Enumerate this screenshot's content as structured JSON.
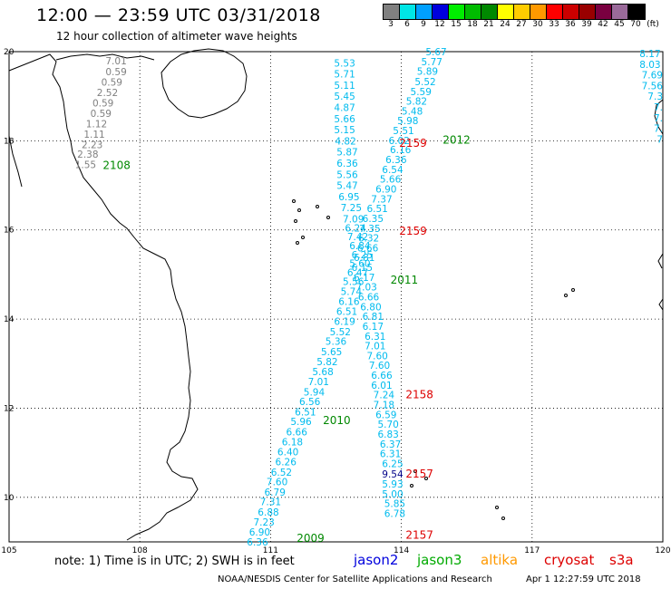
{
  "title": "12:00 — 23:59 UTC 03/31/2018",
  "subtitle": "12 hour collection of altimeter wave heights",
  "legend": {
    "unit_label": "(ft)",
    "bins": [
      {
        "label": "3",
        "color": "#808080"
      },
      {
        "label": "6",
        "color": "#00e6e6"
      },
      {
        "label": "9",
        "color": "#00a0ff"
      },
      {
        "label": "12",
        "color": "#0000dd"
      },
      {
        "label": "15",
        "color": "#00ee00"
      },
      {
        "label": "18",
        "color": "#00bb00"
      },
      {
        "label": "21",
        "color": "#008800"
      },
      {
        "label": "24",
        "color": "#ffff00"
      },
      {
        "label": "27",
        "color": "#ffcc00"
      },
      {
        "label": "30",
        "color": "#ff9900"
      },
      {
        "label": "33",
        "color": "#ff0000"
      },
      {
        "label": "36",
        "color": "#cc0000"
      },
      {
        "label": "39",
        "color": "#990000"
      },
      {
        "label": "42",
        "color": "#7a0040"
      },
      {
        "label": "45",
        "color": "#9a6a9a"
      },
      {
        "label": "70",
        "color": "#000000"
      }
    ]
  },
  "axes": {
    "x_ticks": [
      "105",
      "108",
      "111",
      "114",
      "117",
      "120"
    ],
    "y_ticks": [
      "20",
      "18",
      "16",
      "14",
      "12",
      "10"
    ]
  },
  "track_colors": {
    "swh_low": "#808080",
    "swh_6": "#00ccff",
    "swh_9": "#0099ff",
    "pass_j3": "#008800",
    "pass_cs": "#dd0000"
  },
  "tracks": [
    {
      "id": "gray-coastal",
      "color": "#808080",
      "anchor": "end",
      "points": [
        {
          "v": "7.01",
          "lon": 107.7,
          "lat": 19.8
        },
        {
          "v": "0.59",
          "lon": 107.7,
          "lat": 19.55
        },
        {
          "v": "0.59",
          "lon": 107.6,
          "lat": 19.32
        },
        {
          "v": "2.52",
          "lon": 107.5,
          "lat": 19.08
        },
        {
          "v": "0.59",
          "lon": 107.4,
          "lat": 18.85
        },
        {
          "v": "0.59",
          "lon": 107.35,
          "lat": 18.62
        },
        {
          "v": "1.12",
          "lon": 107.25,
          "lat": 18.38
        },
        {
          "v": "1.11",
          "lon": 107.2,
          "lat": 18.15
        },
        {
          "v": "2.23",
          "lon": 107.15,
          "lat": 17.92
        },
        {
          "v": "2.38",
          "lon": 107.05,
          "lat": 17.7
        },
        {
          "v": "1.55",
          "lon": 107.0,
          "lat": 17.47
        }
      ]
    },
    {
      "id": "track-desc",
      "color": "#00bbee",
      "anchor": "middle",
      "points": [
        {
          "v": "5.53",
          "lon": 112.7,
          "lat": 19.75
        },
        {
          "v": "5.71",
          "lon": 112.7,
          "lat": 19.5
        },
        {
          "v": "5.11",
          "lon": 112.7,
          "lat": 19.25
        },
        {
          "v": "5.45",
          "lon": 112.7,
          "lat": 19.0
        },
        {
          "v": "4.87",
          "lon": 112.7,
          "lat": 18.75
        },
        {
          "v": "5.66",
          "lon": 112.7,
          "lat": 18.5
        },
        {
          "v": "5.15",
          "lon": 112.7,
          "lat": 18.25
        },
        {
          "v": "4.82",
          "lon": 112.72,
          "lat": 18.0
        },
        {
          "v": "5.87",
          "lon": 112.76,
          "lat": 17.75
        },
        {
          "v": "6.36",
          "lon": 112.76,
          "lat": 17.5
        },
        {
          "v": "5.56",
          "lon": 112.76,
          "lat": 17.25
        },
        {
          "v": "5.47",
          "lon": 112.76,
          "lat": 17.0
        },
        {
          "v": "6.95",
          "lon": 112.8,
          "lat": 16.75
        },
        {
          "v": "7.25",
          "lon": 112.85,
          "lat": 16.5
        },
        {
          "v": "7.09",
          "lon": 112.9,
          "lat": 16.25
        },
        {
          "v": "6.24",
          "lon": 112.95,
          "lat": 16.05
        },
        {
          "v": "7.42",
          "lon": 113.0,
          "lat": 15.85
        },
        {
          "v": "6.84",
          "lon": 113.05,
          "lat": 15.65
        },
        {
          "v": "6.25",
          "lon": 113.1,
          "lat": 15.45
        },
        {
          "v": "5.60",
          "lon": 113.05,
          "lat": 15.25
        },
        {
          "v": "6.47",
          "lon": 113.0,
          "lat": 15.05
        },
        {
          "v": "5.56",
          "lon": 112.9,
          "lat": 14.85
        },
        {
          "v": "5.74",
          "lon": 112.85,
          "lat": 14.62
        },
        {
          "v": "6.16",
          "lon": 112.8,
          "lat": 14.4
        },
        {
          "v": "6.51",
          "lon": 112.75,
          "lat": 14.17
        },
        {
          "v": "6.19",
          "lon": 112.7,
          "lat": 13.95
        },
        {
          "v": "5.52",
          "lon": 112.6,
          "lat": 13.72
        },
        {
          "v": "5.36",
          "lon": 112.5,
          "lat": 13.5
        },
        {
          "v": "5.65",
          "lon": 112.4,
          "lat": 13.27
        },
        {
          "v": "5.82",
          "lon": 112.3,
          "lat": 13.05
        },
        {
          "v": "5.68",
          "lon": 112.2,
          "lat": 12.82
        },
        {
          "v": "7.01",
          "lon": 112.1,
          "lat": 12.6
        },
        {
          "v": "5.94",
          "lon": 112.0,
          "lat": 12.37
        },
        {
          "v": "6.56",
          "lon": 111.9,
          "lat": 12.15
        },
        {
          "v": "6.51",
          "lon": 111.8,
          "lat": 11.92
        },
        {
          "v": "5.96",
          "lon": 111.7,
          "lat": 11.7
        },
        {
          "v": "6.66",
          "lon": 111.6,
          "lat": 11.47
        },
        {
          "v": "6.18",
          "lon": 111.5,
          "lat": 11.25
        },
        {
          "v": "6.40",
          "lon": 111.4,
          "lat": 11.02
        },
        {
          "v": "6.26",
          "lon": 111.35,
          "lat": 10.8
        },
        {
          "v": "6.52",
          "lon": 111.25,
          "lat": 10.57
        },
        {
          "v": "7.60",
          "lon": 111.15,
          "lat": 10.35
        },
        {
          "v": "6.79",
          "lon": 111.1,
          "lat": 10.12
        },
        {
          "v": "7.31",
          "lon": 111.0,
          "lat": 9.9
        },
        {
          "v": "6.88",
          "lon": 110.95,
          "lat": 9.67
        },
        {
          "v": "7.23",
          "lon": 110.85,
          "lat": 9.45
        },
        {
          "v": "6.90",
          "lon": 110.75,
          "lat": 9.22
        },
        {
          "v": "6.36",
          "lon": 110.7,
          "lat": 9.0
        }
      ]
    },
    {
      "id": "track-asc",
      "color": "#00bbee",
      "anchor": "middle",
      "points": [
        {
          "v": "5.67",
          "lon": 114.8,
          "lat": 20.0
        },
        {
          "v": "5.77",
          "lon": 114.7,
          "lat": 19.78
        },
        {
          "v": "5.89",
          "lon": 114.6,
          "lat": 19.56
        },
        {
          "v": "5.52",
          "lon": 114.55,
          "lat": 19.33
        },
        {
          "v": "5.59",
          "lon": 114.45,
          "lat": 19.11
        },
        {
          "v": "5.82",
          "lon": 114.35,
          "lat": 18.89
        },
        {
          "v": "5.48",
          "lon": 114.25,
          "lat": 18.67
        },
        {
          "v": "5.98",
          "lon": 114.15,
          "lat": 18.45
        },
        {
          "v": "5.51",
          "lon": 114.05,
          "lat": 18.23
        },
        {
          "v": "6.02",
          "lon": 113.95,
          "lat": 18.01
        },
        {
          "v": "6.16",
          "lon": 113.98,
          "lat": 17.8
        },
        {
          "v": "6.36",
          "lon": 113.88,
          "lat": 17.58
        },
        {
          "v": "6.54",
          "lon": 113.8,
          "lat": 17.36
        },
        {
          "v": "5.66",
          "lon": 113.75,
          "lat": 17.14
        },
        {
          "v": "6.90",
          "lon": 113.65,
          "lat": 16.92
        },
        {
          "v": "7.37",
          "lon": 113.55,
          "lat": 16.7
        },
        {
          "v": "6.51",
          "lon": 113.45,
          "lat": 16.48
        },
        {
          "v": "6.35",
          "lon": 113.35,
          "lat": 16.26
        },
        {
          "v": "7.35",
          "lon": 113.28,
          "lat": 16.04
        },
        {
          "v": "6.32",
          "lon": 113.25,
          "lat": 15.82
        },
        {
          "v": "6.66",
          "lon": 113.23,
          "lat": 15.6
        },
        {
          "v": "6.81",
          "lon": 113.15,
          "lat": 15.38
        },
        {
          "v": "6.15",
          "lon": 113.1,
          "lat": 15.16
        },
        {
          "v": "6.17",
          "lon": 113.15,
          "lat": 14.94
        },
        {
          "v": "7.03",
          "lon": 113.2,
          "lat": 14.72
        },
        {
          "v": "6.66",
          "lon": 113.25,
          "lat": 14.5
        },
        {
          "v": "6.80",
          "lon": 113.3,
          "lat": 14.28
        },
        {
          "v": "6.81",
          "lon": 113.35,
          "lat": 14.06
        },
        {
          "v": "6.17",
          "lon": 113.35,
          "lat": 13.84
        },
        {
          "v": "6.31",
          "lon": 113.4,
          "lat": 13.62
        },
        {
          "v": "7.01",
          "lon": 113.4,
          "lat": 13.4
        },
        {
          "v": "7.60",
          "lon": 113.45,
          "lat": 13.18
        },
        {
          "v": "7.60",
          "lon": 113.5,
          "lat": 12.96
        },
        {
          "v": "6.66",
          "lon": 113.55,
          "lat": 12.74
        },
        {
          "v": "6.01",
          "lon": 113.55,
          "lat": 12.52
        },
        {
          "v": "7.24",
          "lon": 113.6,
          "lat": 12.3
        },
        {
          "v": "7.18",
          "lon": 113.6,
          "lat": 12.08
        },
        {
          "v": "6.59",
          "lon": 113.65,
          "lat": 11.86
        },
        {
          "v": "5.70",
          "lon": 113.7,
          "lat": 11.64
        },
        {
          "v": "6.83",
          "lon": 113.7,
          "lat": 11.42
        },
        {
          "v": "6.37",
          "lon": 113.75,
          "lat": 11.2
        },
        {
          "v": "6.31",
          "lon": 113.75,
          "lat": 10.98
        },
        {
          "v": "6.25",
          "lon": 113.8,
          "lat": 10.76
        },
        {
          "v": "5.93",
          "lon": 113.8,
          "lat": 10.3
        },
        {
          "v": "5.00",
          "lon": 113.8,
          "lat": 10.08
        },
        {
          "v": "5.85",
          "lon": 113.85,
          "lat": 9.86
        },
        {
          "v": "6.78",
          "lon": 113.85,
          "lat": 9.64
        }
      ]
    },
    {
      "id": "track-right",
      "color": "#00bbee",
      "anchor": "end",
      "points": [
        {
          "v": "8.17",
          "lon": 119.95,
          "lat": 19.96
        },
        {
          "v": "8.03",
          "lon": 119.95,
          "lat": 19.72
        },
        {
          "v": "7.69",
          "lon": 120.0,
          "lat": 19.48
        },
        {
          "v": "7.56",
          "lon": 120.0,
          "lat": 19.24
        },
        {
          "v": "7.3",
          "lon": 120.0,
          "lat": 19.0
        },
        {
          "v": "7.",
          "lon": 120.0,
          "lat": 18.76
        },
        {
          "v": "7.",
          "lon": 120.0,
          "lat": 18.52
        },
        {
          "v": "7.",
          "lon": 120.0,
          "lat": 18.28
        },
        {
          "v": "7",
          "lon": 120.0,
          "lat": 18.04
        }
      ]
    },
    {
      "id": "track-dark",
      "color": "#000088",
      "anchor": "middle",
      "points": [
        {
          "v": "9.54",
          "lon": 113.8,
          "lat": 10.53
        }
      ]
    }
  ],
  "pass_labels": [
    {
      "text": "2108",
      "lon": 107.15,
      "lat": 17.45,
      "color": "#008800"
    },
    {
      "text": "2159",
      "lon": 113.95,
      "lat": 17.95,
      "color": "#dd0000"
    },
    {
      "text": "2012",
      "lon": 114.95,
      "lat": 18.02,
      "color": "#008800"
    },
    {
      "text": "2159",
      "lon": 113.95,
      "lat": 15.97,
      "color": "#dd0000"
    },
    {
      "text": "2011",
      "lon": 113.75,
      "lat": 14.88,
      "color": "#008800"
    },
    {
      "text": "2158",
      "lon": 114.1,
      "lat": 12.3,
      "color": "#dd0000"
    },
    {
      "text": "2010",
      "lon": 112.2,
      "lat": 11.72,
      "color": "#008800"
    },
    {
      "text": "2157",
      "lon": 114.1,
      "lat": 10.53,
      "color": "#dd0000"
    },
    {
      "text": "2009",
      "lon": 111.6,
      "lat": 9.08,
      "color": "#008800"
    },
    {
      "text": "2157",
      "lon": 114.1,
      "lat": 9.15,
      "color": "#dd0000"
    }
  ],
  "footer": {
    "note": "note:  1) Time is in UTC;  2) SWH is in feet",
    "missions": [
      {
        "text": "jason2",
        "color": "#0000dd"
      },
      {
        "text": "jason3",
        "color": "#00aa00"
      },
      {
        "text": "altika",
        "color": "#ff9900"
      },
      {
        "text": "cryosat",
        "color": "#dd0000"
      },
      {
        "text": "s3a",
        "color": "#dd0000"
      }
    ],
    "credit": "NOAA/NESDIS Center for Satellite Applications and Research",
    "stamp": "Apr  1 12:27:59 UTC 2018"
  }
}
